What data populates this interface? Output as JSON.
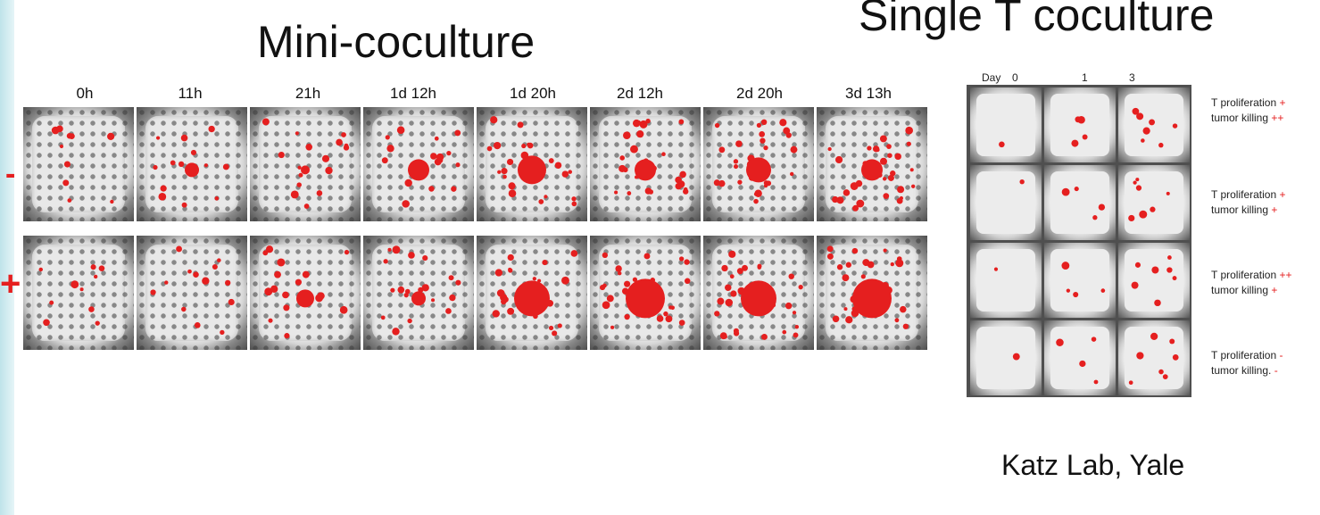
{
  "titles": {
    "mini": "Mini-coculture",
    "single": "Single T coculture",
    "credit": "Katz Lab, Yale"
  },
  "timepoints": [
    "0h",
    "11h",
    "21h",
    "1d 12h",
    "1d 20h",
    "2d 12h",
    "2d 20h",
    "3d 13h"
  ],
  "row_signs": [
    "-",
    "+"
  ],
  "single": {
    "day_label": "Day",
    "days": [
      "0",
      "1",
      "3"
    ],
    "rows": [
      {
        "prolif": "T proliferation",
        "prolif_sign": "+",
        "killing": "tumor killing",
        "killing_sign": "++"
      },
      {
        "prolif": "T proliferation",
        "prolif_sign": "+",
        "killing": "tumor killing",
        "killing_sign": "+"
      },
      {
        "prolif": "T proliferation",
        "prolif_sign": "++",
        "killing": "tumor killing",
        "killing_sign": "+"
      },
      {
        "prolif": "T proliferation",
        "prolif_sign": "-",
        "killing": "tumor killing.",
        "killing_sign": "-"
      }
    ]
  },
  "colors": {
    "accent": "#e51f1f",
    "cell_bg": "#e8e8e8"
  }
}
